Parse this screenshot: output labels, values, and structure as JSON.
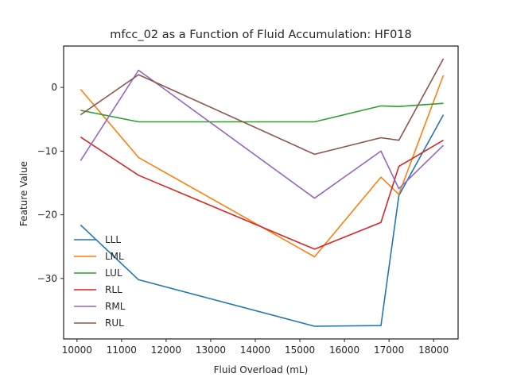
{
  "chart_data": {
    "type": "line",
    "title": "mfcc_02 as a Function of Fluid Accumulation: HF018",
    "xlabel": "Fluid Overload (mL)",
    "ylabel": "Feature Value",
    "xlim": [
      9700,
      18550
    ],
    "ylim": [
      -39.5,
      6.5
    ],
    "xticks": [
      10000,
      11000,
      12000,
      13000,
      14000,
      15000,
      16000,
      17000,
      18000
    ],
    "yticks": [
      0,
      -10,
      -20,
      -30
    ],
    "legend_position": "lower-left",
    "grid": false,
    "x": [
      10080,
      11380,
      15330,
      16820,
      17220,
      18220
    ],
    "series": [
      {
        "name": "LLL",
        "color": "#1f77b4",
        "values": [
          -21.6,
          -30.2,
          -37.5,
          -37.4,
          -17.0,
          -4.3
        ]
      },
      {
        "name": "LML",
        "color": "#ff7f0e",
        "values": [
          -0.3,
          -11.0,
          -26.6,
          -14.1,
          -16.8,
          1.9
        ]
      },
      {
        "name": "LUL",
        "color": "#2ca02c",
        "values": [
          -3.6,
          -5.4,
          -5.4,
          -2.9,
          -3.0,
          -2.5
        ]
      },
      {
        "name": "RLL",
        "color": "#d62728",
        "values": [
          -7.8,
          -13.8,
          -25.4,
          -21.2,
          -12.4,
          -8.3
        ]
      },
      {
        "name": "RML",
        "color": "#9467bd",
        "values": [
          -11.5,
          2.7,
          -17.4,
          -10.0,
          -15.9,
          -9.1
        ]
      },
      {
        "name": "RUL",
        "color": "#8c564b",
        "values": [
          -4.3,
          2.0,
          -10.5,
          -7.9,
          -8.3,
          4.5
        ]
      }
    ]
  }
}
